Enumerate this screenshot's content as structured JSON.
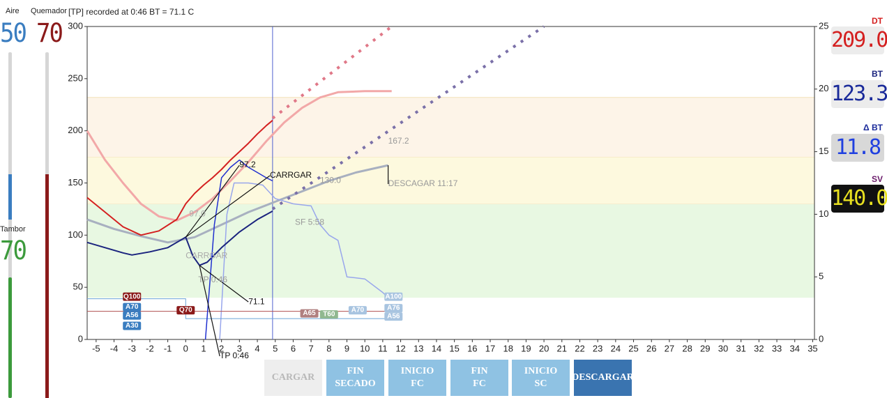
{
  "status": "[TP] recorded at 0:46 BT = 71.1 C",
  "sliders": [
    {
      "label": "Aire",
      "value": 50,
      "color": "#3a7dc0"
    },
    {
      "label": "Quemador",
      "value": 70,
      "color": "#8b1a1a"
    },
    {
      "label": "Tambor",
      "value": 70,
      "color": "#3c9a3c"
    }
  ],
  "readouts": [
    {
      "label": "DT",
      "value": "209.0",
      "color": "#d42020",
      "label_color": "#d42020",
      "bg": "#ececec"
    },
    {
      "label": "BT",
      "value": "123.3",
      "color": "#1a2a9a",
      "label_color": "#1a237e",
      "bg": "#ececec"
    },
    {
      "label": "Δ BT",
      "value": "11.8",
      "color": "#2040e0",
      "label_color": "#1a2a9a",
      "bg": "#d8d8d8"
    },
    {
      "label": "SV",
      "value": "140.0",
      "color": "#e8e020",
      "label_color": "#6a1a6a",
      "bg": "#111111"
    }
  ],
  "buttons": [
    {
      "lines": [
        "CARGAR"
      ],
      "enabled": false
    },
    {
      "lines": [
        "FIN",
        "SECADO"
      ],
      "enabled": true
    },
    {
      "lines": [
        "INICIO",
        "FC"
      ],
      "enabled": true
    },
    {
      "lines": [
        "FIN",
        "FC"
      ],
      "enabled": true
    },
    {
      "lines": [
        "INICIO",
        "SC"
      ],
      "enabled": true
    },
    {
      "lines": [
        "DESCARGAR"
      ],
      "enabled": true,
      "active": true
    }
  ],
  "chart_data": {
    "type": "line",
    "xlim": [
      -5.5,
      35.1
    ],
    "ylim": [
      0,
      300
    ],
    "y2lim": [
      0,
      25
    ],
    "xticks": [
      -5,
      -4,
      -3,
      -2,
      -1,
      0,
      1,
      2,
      3,
      4,
      5,
      6,
      7,
      8,
      9,
      10,
      11,
      12,
      13,
      14,
      15,
      16,
      17,
      18,
      19,
      20,
      21,
      22,
      23,
      24,
      25,
      26,
      27,
      28,
      29,
      30,
      31,
      32,
      33,
      34,
      35
    ],
    "yticks": [
      0,
      50,
      100,
      150,
      200,
      250,
      300
    ],
    "y2ticks": [
      0,
      5,
      10,
      15,
      20,
      25
    ],
    "bands": [
      {
        "from": 40,
        "to": 130,
        "color": "#e8f8e2"
      },
      {
        "from": 130,
        "to": 175,
        "color": "#fdf9de"
      },
      {
        "from": 175,
        "to": 232,
        "color": "#fdf4e8"
      }
    ],
    "cursor_x": 4.85,
    "series": [
      {
        "color": "#f2a8a8",
        "width": 3,
        "x": [
          -5.5,
          -4.5,
          -3.5,
          -2.5,
          -1.5,
          -0.5,
          0.5,
          1.5,
          2.5,
          3.5,
          4.5,
          5.5,
          6.5,
          7.5,
          8.5,
          10,
          11.5
        ],
        "values": [
          200,
          172,
          150,
          130,
          118,
          114,
          122,
          135,
          152,
          170,
          190,
          208,
          222,
          232,
          237,
          238,
          238
        ]
      },
      {
        "color": "#a8b0c0",
        "width": 3,
        "x": [
          -5.5,
          -4,
          -2.5,
          -1,
          0.5,
          2,
          3.5,
          5,
          6.5,
          8,
          9.5,
          11.3
        ],
        "values": [
          115,
          106,
          99,
          93,
          98,
          110,
          122,
          132,
          142,
          152,
          160,
          167
        ]
      },
      {
        "color": "#98a6ec",
        "width": 1.5,
        "x": [
          1.9,
          2.3,
          2.7,
          3.5,
          4.3,
          5,
          6,
          7,
          7.5,
          8,
          8.5,
          9,
          10,
          11,
          11.3
        ],
        "values": [
          0,
          120,
          150,
          150,
          148,
          135,
          130,
          128,
          110,
          100,
          95,
          60,
          58,
          45,
          40
        ]
      },
      {
        "color": "#e07888",
        "width": 4,
        "dash": true,
        "x": [
          4.85,
          11.5
        ],
        "values": [
          212,
          300
        ]
      },
      {
        "color": "#7a70a8",
        "width": 4,
        "dash": true,
        "x": [
          4.85,
          20
        ],
        "values": [
          125,
          300
        ]
      },
      {
        "color": "#b05050",
        "width": 1,
        "x": [
          -5.5,
          12
        ],
        "values": [
          27,
          27
        ]
      },
      {
        "color": "#6aa4d8",
        "width": 1,
        "x": [
          -5.5,
          0,
          0,
          11.6
        ],
        "values": [
          39,
          39,
          20,
          20
        ]
      },
      {
        "color": "#d42020",
        "width": 2,
        "x": [
          -5.5,
          -4.5,
          -3.5,
          -2.5,
          -1.5,
          -0.5,
          0,
          0.5,
          1,
          1.5,
          2,
          2.5,
          3,
          3.5,
          4,
          4.5,
          4.85
        ],
        "values": [
          136,
          122,
          108,
          100,
          104,
          115,
          130,
          140,
          148,
          155,
          163,
          172,
          180,
          188,
          197,
          205,
          210
        ]
      },
      {
        "color": "#1a237e",
        "width": 2,
        "x": [
          -5.5,
          -4.5,
          -3.5,
          -3,
          -2,
          -1,
          0,
          0.4,
          0.77,
          1.2,
          2,
          3,
          4,
          4.85
        ],
        "values": [
          93,
          88,
          83,
          81,
          84,
          88,
          98,
          80,
          71,
          74,
          88,
          103,
          115,
          123
        ]
      },
      {
        "color": "#2030d0",
        "width": 1.5,
        "x": [
          1.1,
          1.6,
          2,
          2.5,
          3,
          3.5,
          4,
          4.5,
          4.85
        ],
        "values": [
          0,
          110,
          155,
          165,
          172,
          165,
          160,
          155,
          152
        ]
      }
    ],
    "annotations": [
      {
        "text": "97.2",
        "x": 3,
        "y": 167,
        "color": "#111"
      },
      {
        "text": "CARRGAR",
        "x": 4.7,
        "y": 157,
        "color": "#111"
      },
      {
        "text": "130.0",
        "x": 7.5,
        "y": 152,
        "color": "#999"
      },
      {
        "text": "167.2",
        "x": 11.3,
        "y": 190,
        "color": "#999"
      },
      {
        "text": "DESCAGAR 11:17",
        "x": 11.3,
        "y": 149,
        "color": "#999"
      },
      {
        "text": "SF 5:58",
        "x": 6.1,
        "y": 112,
        "color": "#999"
      },
      {
        "text": "97.0",
        "x": 0.2,
        "y": 120,
        "color": "#aaa"
      },
      {
        "text": "CARRGAR",
        "x": 0,
        "y": 80,
        "color": "#aaa"
      },
      {
        "text": "TP 0:46",
        "x": 0.7,
        "y": 57,
        "color": "#999"
      },
      {
        "text": "71.1",
        "x": 3.5,
        "y": 36,
        "color": "#111"
      },
      {
        "text": "TP 0:46",
        "x": 1.9,
        "y": -16,
        "color": "#111"
      }
    ],
    "tags": [
      {
        "text": "Q100",
        "x": -3,
        "y": 41,
        "color": "#8b1a1a"
      },
      {
        "text": "A70",
        "x": -3,
        "y": 31,
        "color": "#3a7dc0"
      },
      {
        "text": "A56",
        "x": -3,
        "y": 23,
        "color": "#3a7dc0"
      },
      {
        "text": "A30",
        "x": -3,
        "y": 13,
        "color": "#3a7dc0"
      },
      {
        "text": "Q70",
        "x": 0,
        "y": 28,
        "color": "#8b1a1a"
      },
      {
        "text": "A65",
        "x": 6.9,
        "y": 25,
        "color": "#b08080"
      },
      {
        "text": "T60",
        "x": 8,
        "y": 24,
        "color": "#90b890"
      },
      {
        "text": "A70",
        "x": 9.6,
        "y": 28,
        "color": "#a8c4e0"
      },
      {
        "text": "A100",
        "x": 11.6,
        "y": 41,
        "color": "#a8c4e0"
      },
      {
        "text": "A76",
        "x": 11.6,
        "y": 30,
        "color": "#a8c4e0"
      },
      {
        "text": "A56",
        "x": 11.6,
        "y": 22,
        "color": "#a8c4e0"
      }
    ]
  }
}
